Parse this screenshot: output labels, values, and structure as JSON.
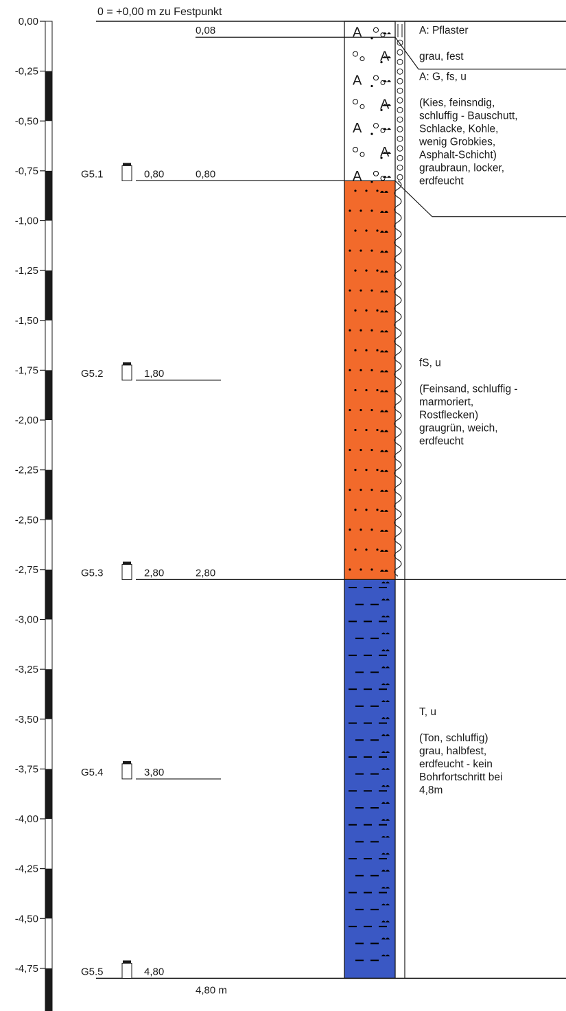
{
  "header": {
    "reference": "0 = +0,00 m zu Festpunkt"
  },
  "depth_scale": {
    "unit": "m",
    "min": -5.0,
    "max": 0.0,
    "tick_step": 0.25,
    "labels": [
      "0,00",
      "-0,25",
      "-0,50",
      "-0,75",
      "-1,00",
      "-1,25",
      "-1,50",
      "-1,75",
      "-2,00",
      "-2,25",
      "-2,50",
      "-2,75",
      "-3,00",
      "-3,25",
      "-3,50",
      "-3,75",
      "-4,00",
      "-4,25",
      "-4,50",
      "-4,75"
    ]
  },
  "layer_boundaries": [
    {
      "depth": 0.08,
      "label": "0,08"
    },
    {
      "depth": 0.8,
      "label": "0,80"
    },
    {
      "depth": 2.8,
      "label": "2,80"
    }
  ],
  "final_depth": {
    "depth": 4.8,
    "label": "4,80 m"
  },
  "samples": [
    {
      "id": "G5.1",
      "depth": 0.8,
      "label": "0,80"
    },
    {
      "id": "G5.2",
      "depth": 1.8,
      "label": "1,80"
    },
    {
      "id": "G5.3",
      "depth": 2.8,
      "label": "2,80"
    },
    {
      "id": "G5.4",
      "depth": 3.8,
      "label": "3,80"
    },
    {
      "id": "G5.5",
      "depth": 4.8,
      "label": "4,80"
    }
  ],
  "layers": [
    {
      "top": 0.0,
      "bottom": 0.08,
      "pattern": "pflaster",
      "color": "#ffffff"
    },
    {
      "top": 0.08,
      "bottom": 0.8,
      "pattern": "fill-gravel",
      "color": "#ffffff"
    },
    {
      "top": 0.8,
      "bottom": 2.8,
      "pattern": "fine-sand-silty",
      "color": "#f26a2b"
    },
    {
      "top": 2.8,
      "bottom": 4.8,
      "pattern": "clay-silty",
      "color": "#3a58c4"
    }
  ],
  "descriptions": [
    {
      "lines": [
        "A: Pflaster",
        "",
        "grau, fest"
      ]
    },
    {
      "lines": [
        "A: G, fs, u",
        "",
        "(Kies, feinsndig,",
        "schluffig - Bauschutt,",
        "Schlacke, Kohle,",
        "wenig Grobkies,",
        "Asphalt-Schicht)",
        "graubraun, locker,",
        "erdfeucht"
      ]
    },
    {
      "lines": [
        "fS, u",
        "",
        "(Feinsand, schluffig -",
        "marmoriert,",
        "Rostflecken)",
        "graugrün, weich,",
        "erdfeucht"
      ]
    },
    {
      "lines": [
        "T, u",
        "",
        "(Ton, schluffig)",
        "grau, halbfest,",
        "erdfeucht - kein",
        "Bohrfortschritt bei",
        "4,8m"
      ]
    }
  ],
  "colors": {
    "sand": "#f26a2b",
    "clay": "#3a58c4",
    "line": "#1a1a1a"
  }
}
